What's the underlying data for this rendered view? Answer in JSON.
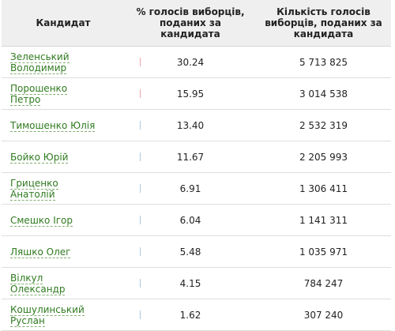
{
  "headers": {
    "candidate": "Кандидат",
    "percent": "% голосів виборців, поданих за кандидата",
    "votes": "Кількість голосів виборців, поданих за кандидата"
  },
  "colors": {
    "link": "#2f7a1f",
    "tick_red": "#f0a6b1",
    "tick_blue": "#a9c8e2",
    "header_bg": "#efefef"
  },
  "rows": [
    {
      "name": "Зеленський Володимир",
      "percent": "30.24",
      "votes": "5 713 825",
      "tick": "red"
    },
    {
      "name": "Порошенко Петро",
      "percent": "15.95",
      "votes": "3 014 538",
      "tick": "red"
    },
    {
      "name": "Тимошенко Юлія",
      "percent": "13.40",
      "votes": "2 532 319",
      "tick": "blue"
    },
    {
      "name": "Бойко Юрій",
      "percent": "11.67",
      "votes": "2 205 993",
      "tick": "blue"
    },
    {
      "name": "Гриценко Анатолій",
      "percent": "6.91",
      "votes": "1 306 411",
      "tick": "blue"
    },
    {
      "name": "Смешко Ігор",
      "percent": "6.04",
      "votes": "1 141 311",
      "tick": "blue"
    },
    {
      "name": "Ляшко Олег",
      "percent": "5.48",
      "votes": "1 035 971",
      "tick": "blue"
    },
    {
      "name": "Вілкул Олександр",
      "percent": "4.15",
      "votes": "784 247",
      "tick": "blue"
    },
    {
      "name": "Кошулинський Руслан",
      "percent": "1.62",
      "votes": "307 240",
      "tick": "blue"
    }
  ]
}
